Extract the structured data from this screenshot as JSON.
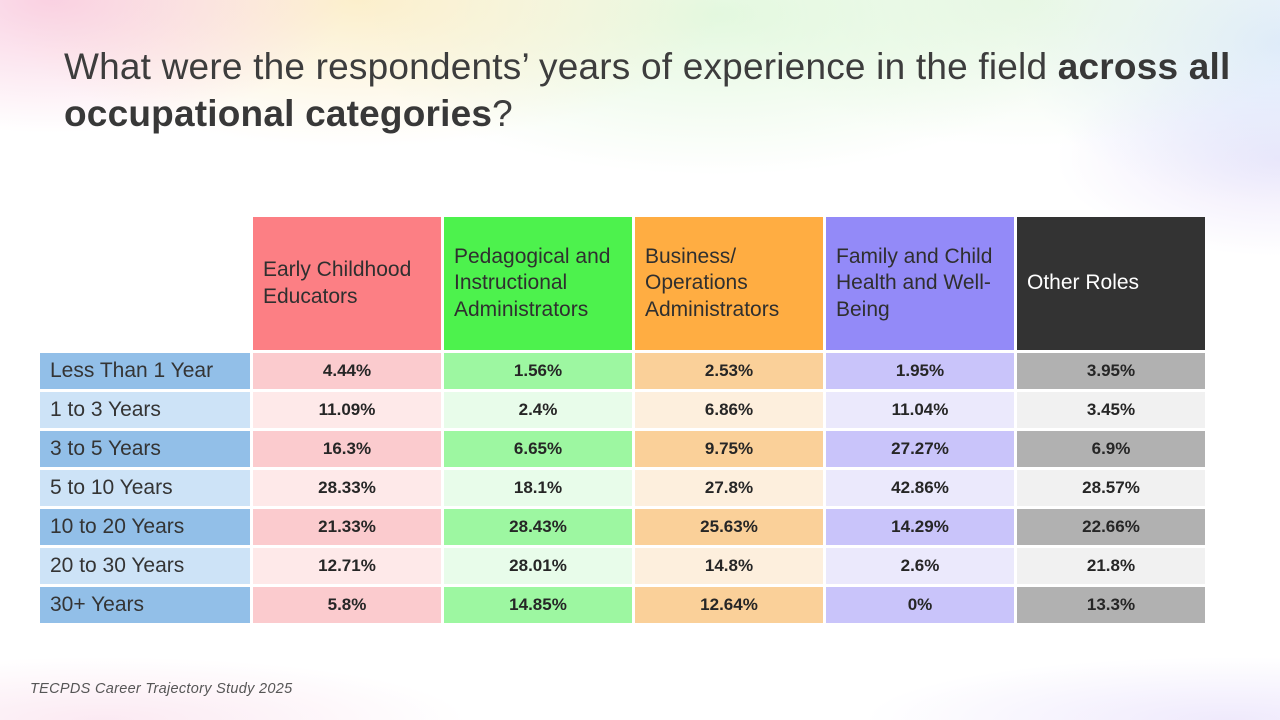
{
  "slide": {
    "title": {
      "prefix": "What were the respondents’ years of experience in the field ",
      "bold": "across all occupational categories",
      "suffix": "?"
    },
    "footer": "TECPDS Career Trajectory Study 2025"
  },
  "table": {
    "columns": [
      "Early Childhood Educators",
      "Pedagogical and Instructional Administrators",
      "Business/ Operations Administrators",
      "Family and Child Health and Well-Being",
      "Other Roles"
    ],
    "rows": [
      {
        "label": "Less Than 1 Year",
        "values": [
          "4.44%",
          "1.56%",
          "2.53%",
          "1.95%",
          "3.95%"
        ]
      },
      {
        "label": "1 to 3 Years",
        "values": [
          "11.09%",
          "2.4%",
          "6.86%",
          "11.04%",
          "3.45%"
        ]
      },
      {
        "label": "3 to 5 Years",
        "values": [
          "16.3%",
          "6.65%",
          "9.75%",
          "27.27%",
          "6.9%"
        ]
      },
      {
        "label": "5 to 10 Years",
        "values": [
          "28.33%",
          "18.1%",
          "27.8%",
          "42.86%",
          "28.57%"
        ]
      },
      {
        "label": "10 to 20 Years",
        "values": [
          "21.33%",
          "28.43%",
          "25.63%",
          "14.29%",
          "22.66%"
        ]
      },
      {
        "label": "20 to 30 Years",
        "values": [
          "12.71%",
          "28.01%",
          "14.8%",
          "2.6%",
          "21.8%"
        ]
      },
      {
        "label": "30+ Years",
        "values": [
          "5.8%",
          "14.85%",
          "12.64%",
          "0%",
          "13.3%"
        ]
      }
    ]
  },
  "chart_data": {
    "type": "table",
    "title": "What were the respondents’ years of experience in the field across all occupational categories?",
    "categories": [
      "Less Than 1 Year",
      "1 to 3 Years",
      "3 to 5 Years",
      "5 to 10 Years",
      "10 to 20 Years",
      "20 to 30 Years",
      "30+ Years"
    ],
    "series": [
      {
        "name": "Early Childhood Educators",
        "values": [
          4.44,
          11.09,
          16.3,
          28.33,
          21.33,
          12.71,
          5.8
        ]
      },
      {
        "name": "Pedagogical and Instructional Administrators",
        "values": [
          1.56,
          2.4,
          6.65,
          18.1,
          28.43,
          28.01,
          14.85
        ]
      },
      {
        "name": "Business/ Operations Administrators",
        "values": [
          2.53,
          6.86,
          9.75,
          27.8,
          25.63,
          14.8,
          12.64
        ]
      },
      {
        "name": "Family and Child Health and Well-Being",
        "values": [
          1.95,
          11.04,
          27.27,
          42.86,
          14.29,
          2.6,
          0
        ]
      },
      {
        "name": "Other Roles",
        "values": [
          3.95,
          3.45,
          6.9,
          28.57,
          22.66,
          21.8,
          13.3
        ]
      }
    ],
    "unit": "%",
    "source": "TECPDS Career Trajectory Study 2025"
  },
  "colors": {
    "ece_header": "#FC7F84",
    "ece_dark": "#FBCBCE",
    "ece_light": "#FEE9E9",
    "ped_header": "#4DF24D",
    "ped_dark": "#9DF7A1",
    "ped_light": "#E8FCEA",
    "biz_header": "#FFAD42",
    "biz_dark": "#FAD099",
    "biz_light": "#FDEFDD",
    "fam_header": "#938AF8",
    "fam_dark": "#C9C4FA",
    "fam_light": "#EBE9FC",
    "other_header": "#333333",
    "other_dark": "#B1B1B1",
    "other_light": "#F1F1F1",
    "label_dark": "#92BFE8",
    "label_light": "#CDE3F7"
  }
}
